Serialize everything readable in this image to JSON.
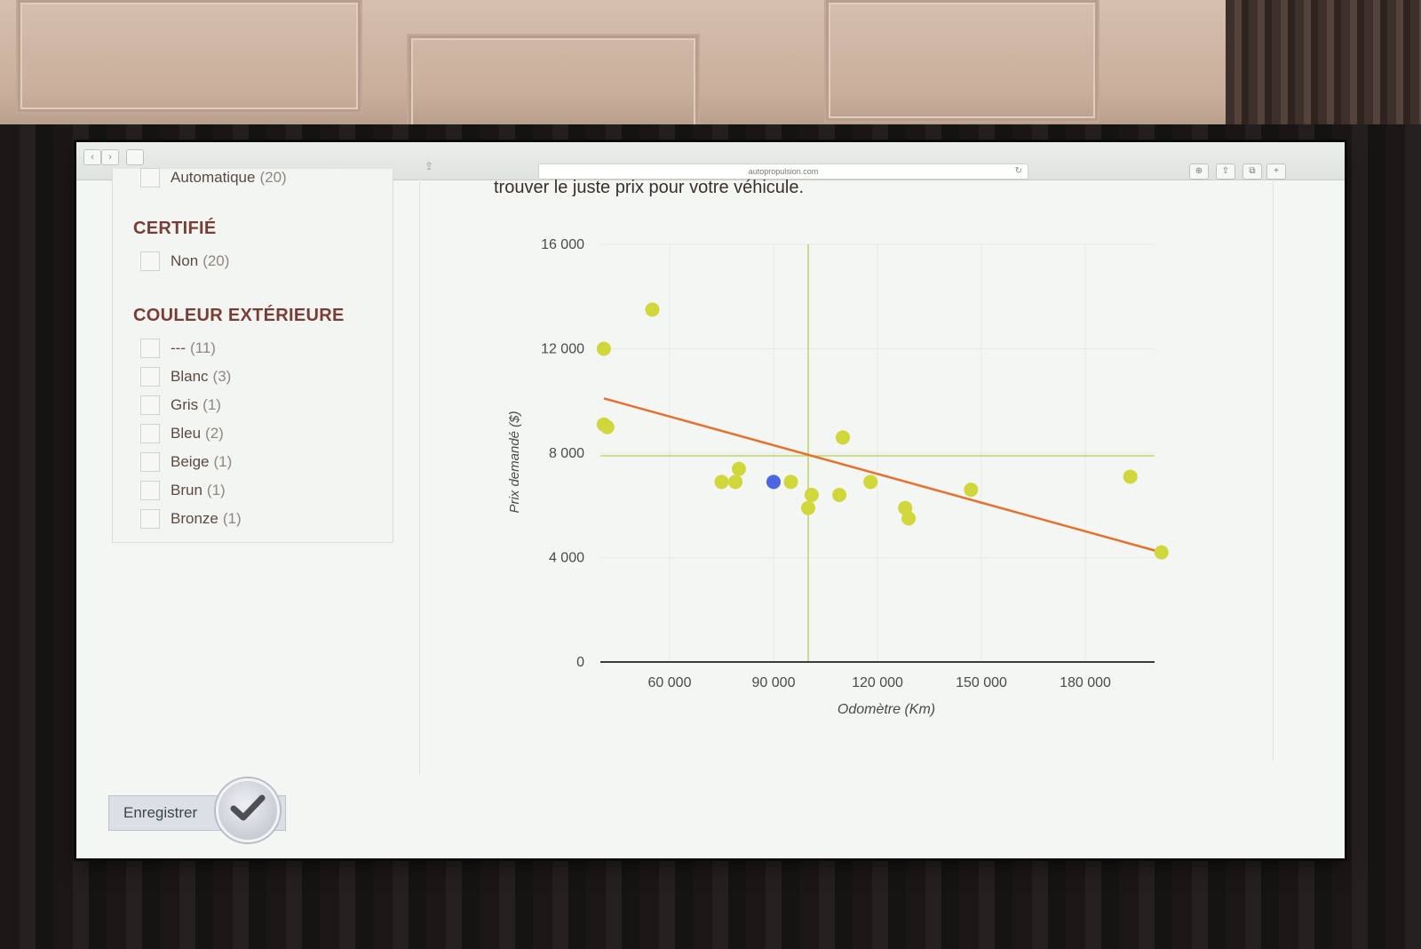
{
  "browser": {
    "url": "autopropulsion.com",
    "back_glyph": "‹",
    "forward_glyph": "›",
    "reload_glyph": "↻",
    "share_glyph": "⇪",
    "tool_glyphs": [
      "⊕",
      "⇧",
      "⧉",
      "+"
    ]
  },
  "sidebar": {
    "transmission_item": {
      "label": "Automatique",
      "count": "(20)"
    },
    "certified": {
      "title": "CERTIFIÉ",
      "items": [
        {
          "label": "Non",
          "count": "(20)"
        }
      ]
    },
    "exterior_color": {
      "title": "COULEUR EXTÉRIEURE",
      "items": [
        {
          "label": "---",
          "count": "(11)"
        },
        {
          "label": "Blanc",
          "count": "(3)"
        },
        {
          "label": "Gris",
          "count": "(1)"
        },
        {
          "label": "Bleu",
          "count": "(2)"
        },
        {
          "label": "Beige",
          "count": "(1)"
        },
        {
          "label": "Brun",
          "count": "(1)"
        },
        {
          "label": "Bronze",
          "count": "(1)"
        }
      ]
    }
  },
  "main": {
    "intro_text": "trouver le juste prix pour votre véhicule."
  },
  "footer": {
    "save_label": "Enregistrer"
  },
  "colors": {
    "point": "#cfd73a",
    "highlight_point": "#4a66e0",
    "trend_line": "#e8702c",
    "crosshair": "#b9d56a",
    "grid": "#e6e9e5"
  },
  "chart_data": {
    "type": "scatter",
    "title": "",
    "xlabel": "Odomètre (Km)",
    "ylabel": "Prix demandé ($)",
    "xlim": [
      40000,
      200000
    ],
    "ylim": [
      0,
      16000
    ],
    "xticks": [
      {
        "value": 60000,
        "label": "60 000"
      },
      {
        "value": 90000,
        "label": "90 000"
      },
      {
        "value": 120000,
        "label": "120 000"
      },
      {
        "value": 150000,
        "label": "150 000"
      },
      {
        "value": 180000,
        "label": "180 000"
      }
    ],
    "yticks": [
      {
        "value": 0,
        "label": "0"
      },
      {
        "value": 4000,
        "label": "4 000"
      },
      {
        "value": 8000,
        "label": "8 000"
      },
      {
        "value": 12000,
        "label": "12 000"
      },
      {
        "value": 16000,
        "label": "16 000"
      }
    ],
    "grid": true,
    "points": [
      {
        "x": 41000,
        "y": 12000
      },
      {
        "x": 55000,
        "y": 13500
      },
      {
        "x": 41000,
        "y": 9100
      },
      {
        "x": 42000,
        "y": 9000
      },
      {
        "x": 75000,
        "y": 6900
      },
      {
        "x": 79000,
        "y": 6900
      },
      {
        "x": 80000,
        "y": 7400
      },
      {
        "x": 95000,
        "y": 6900
      },
      {
        "x": 101000,
        "y": 6400
      },
      {
        "x": 100000,
        "y": 5900
      },
      {
        "x": 109000,
        "y": 6400
      },
      {
        "x": 110000,
        "y": 8600
      },
      {
        "x": 118000,
        "y": 6900
      },
      {
        "x": 128000,
        "y": 5900
      },
      {
        "x": 129000,
        "y": 5500
      },
      {
        "x": 147000,
        "y": 6600
      },
      {
        "x": 193000,
        "y": 7100
      },
      {
        "x": 202000,
        "y": 4200
      }
    ],
    "highlight_point": {
      "x": 90000,
      "y": 6900
    },
    "trend_line": [
      {
        "x": 41000,
        "y": 10100
      },
      {
        "x": 202000,
        "y": 4200
      }
    ],
    "reference_lines": {
      "x": 100000,
      "y": 7900
    }
  }
}
